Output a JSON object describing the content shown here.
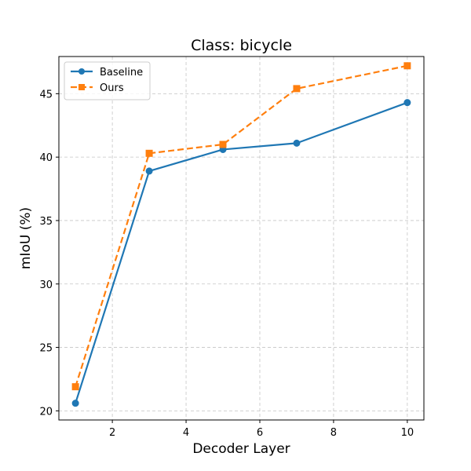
{
  "chart_data": {
    "type": "line",
    "title": "Class: bicycle",
    "xlabel": "Decoder Layer",
    "ylabel": "mIoU (%)",
    "xlim": [
      0.55,
      10.45
    ],
    "ylim": [
      19.28,
      47.93
    ],
    "xticks": [
      2,
      4,
      6,
      8,
      10
    ],
    "yticks": [
      20,
      25,
      30,
      35,
      40,
      45
    ],
    "grid": true,
    "legend_position": "top-left",
    "x": [
      1,
      3,
      5,
      7,
      10
    ],
    "series": [
      {
        "name": "Baseline",
        "values": [
          20.6,
          38.9,
          40.6,
          41.1,
          44.3
        ],
        "color": "#1f77b4",
        "linestyle": "solid",
        "marker": "circle"
      },
      {
        "name": "Ours",
        "values": [
          21.9,
          40.3,
          41.0,
          45.4,
          47.2
        ],
        "color": "#ff7f0e",
        "linestyle": "dashed",
        "marker": "square"
      }
    ]
  }
}
